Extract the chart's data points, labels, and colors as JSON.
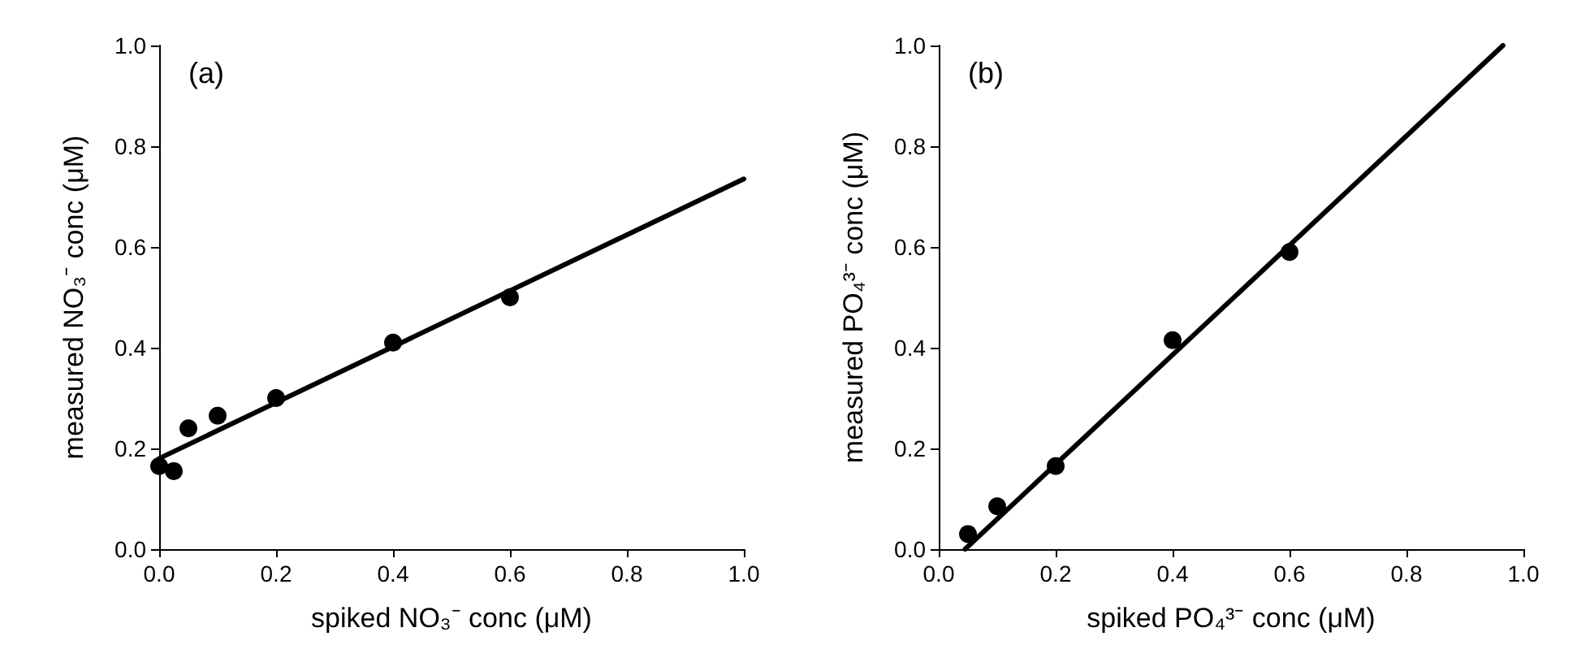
{
  "chart_data": [
    {
      "type": "scatter",
      "annotations": [
        "(a)"
      ],
      "xlabel": "spiked NO₃⁻ conc (μM)",
      "ylabel": "measured NO₃⁻ conc (μM)",
      "x": [
        0,
        0.025,
        0.05,
        0.1,
        0.2,
        0.4,
        0.6
      ],
      "series": [
        {
          "color": "#000000",
          "marker": "circle",
          "values": [
            0.165,
            0.155,
            0.24,
            0.265,
            0.3,
            0.41,
            0.5
          ]
        },
        {
          "type": "line",
          "color": "#000000",
          "marker": "none",
          "line_style": "solid",
          "x": [
            0,
            1
          ],
          "values": [
            0.18,
            0.735
          ]
        }
      ],
      "xlim": [
        0,
        1
      ],
      "ylim": [
        0,
        1
      ],
      "xticks": [
        {
          "value": 0,
          "label": "0.0"
        },
        {
          "value": 0.2,
          "label": "0.2"
        },
        {
          "value": 0.4,
          "label": "0.4"
        },
        {
          "value": 0.6,
          "label": "0.6"
        },
        {
          "value": 0.8,
          "label": "0.8"
        },
        {
          "value": 1,
          "label": "1.0"
        }
      ],
      "yticks": [
        {
          "value": 0,
          "label": "0.0"
        },
        {
          "value": 0.2,
          "label": "0.2"
        },
        {
          "value": 0.4,
          "label": "0.4"
        },
        {
          "value": 0.6,
          "label": "0.6"
        },
        {
          "value": 0.8,
          "label": "0.8"
        },
        {
          "value": 1,
          "label": "1.0"
        }
      ],
      "grid": false
    },
    {
      "type": "scatter",
      "annotations": [
        "(b)"
      ],
      "xlabel": "spiked PO₄³⁻ conc (μM)",
      "ylabel": "measured PO₄³⁻ conc (μM)",
      "x": [
        0.05,
        0.1,
        0.2,
        0.4,
        0.6
      ],
      "series": [
        {
          "color": "#000000",
          "marker": "circle",
          "values": [
            0.03,
            0.085,
            0.165,
            0.415,
            0.59
          ]
        },
        {
          "type": "line",
          "color": "#000000",
          "marker": "none",
          "line_style": "solid",
          "x": [
            0.045,
            0.965
          ],
          "values": [
            0,
            1
          ]
        }
      ],
      "xlim": [
        0,
        1
      ],
      "ylim": [
        0,
        1
      ],
      "xticks": [
        {
          "value": 0,
          "label": "0.0"
        },
        {
          "value": 0.2,
          "label": "0.2"
        },
        {
          "value": 0.4,
          "label": "0.4"
        },
        {
          "value": 0.6,
          "label": "0.6"
        },
        {
          "value": 0.8,
          "label": "0.8"
        },
        {
          "value": 1,
          "label": "1.0"
        }
      ],
      "yticks": [
        {
          "value": 0,
          "label": "0.0"
        },
        {
          "value": 0.2,
          "label": "0.2"
        },
        {
          "value": 0.4,
          "label": "0.4"
        },
        {
          "value": 0.6,
          "label": "0.6"
        },
        {
          "value": 0.8,
          "label": "0.8"
        },
        {
          "value": 1,
          "label": "1.0"
        }
      ],
      "grid": false
    }
  ]
}
